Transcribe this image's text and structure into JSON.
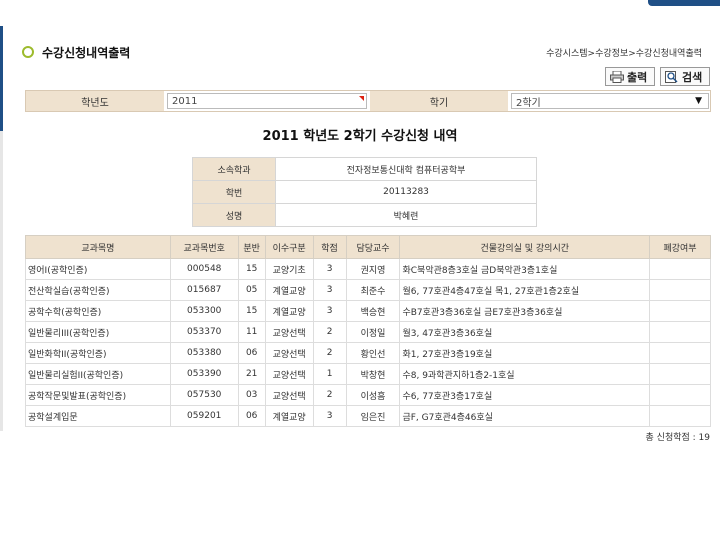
{
  "page": {
    "title": "수강신청내역출력",
    "breadcrumb": "수강시스템>수강정보>수강신청내역출력"
  },
  "buttons": {
    "print": "출력",
    "search": "검색"
  },
  "filter": {
    "year_label": "학년도",
    "year_value": "2011",
    "semester_label": "학기",
    "semester_value": "2학기"
  },
  "report_title": "2011  학년도  2학기 수강신청 내역",
  "student": [
    {
      "label": "소속학과",
      "value": "전자정보통신대학 컴퓨터공학부"
    },
    {
      "label": "학번",
      "value": "20113283"
    },
    {
      "label": "성명",
      "value": "박혜련"
    }
  ],
  "table": {
    "headers": [
      "교과목명",
      "교과목번호",
      "분반",
      "이수구분",
      "학점",
      "담당교수",
      "건물강의실 및 강의시간",
      "폐강여부"
    ],
    "rows": [
      [
        "영어I(공학인증)",
        "000548",
        "15",
        "교양기초",
        "3",
        "권지영",
        "화C북악관8층3호실 금D북악관3층1호실",
        ""
      ],
      [
        "전산학실습(공학인증)",
        "015687",
        "05",
        "계열교양",
        "3",
        "최준수",
        "월6, 77호관4층47호실 목1, 27호관1층2호실",
        ""
      ],
      [
        "공학수학(공학인증)",
        "053300",
        "15",
        "계열교양",
        "3",
        "백승현",
        "수B7호관3층36호실 금E7호관3층36호실",
        ""
      ],
      [
        "일반물리III(공학인증)",
        "053370",
        "11",
        "교양선택",
        "2",
        "이정일",
        "월3, 47호관3층36호실",
        ""
      ],
      [
        "일반화학II(공학인증)",
        "053380",
        "06",
        "교양선택",
        "2",
        "황인선",
        "화1, 27호관3층19호실",
        ""
      ],
      [
        "일반물리실험II(공학인증)",
        "053390",
        "21",
        "교양선택",
        "1",
        "박창현",
        "수8, 9과학관지하1층2-1호실",
        ""
      ],
      [
        "공학작문및발표(공학인증)",
        "057530",
        "03",
        "교양선택",
        "2",
        "이성흠",
        "수6, 77호관3층17호실",
        ""
      ],
      [
        "공학설계입문",
        "059201",
        "06",
        "계열교양",
        "3",
        "임은진",
        "금F, G7호관4층46호실",
        ""
      ]
    ]
  },
  "total_credits": "총 신청학점 : 19"
}
